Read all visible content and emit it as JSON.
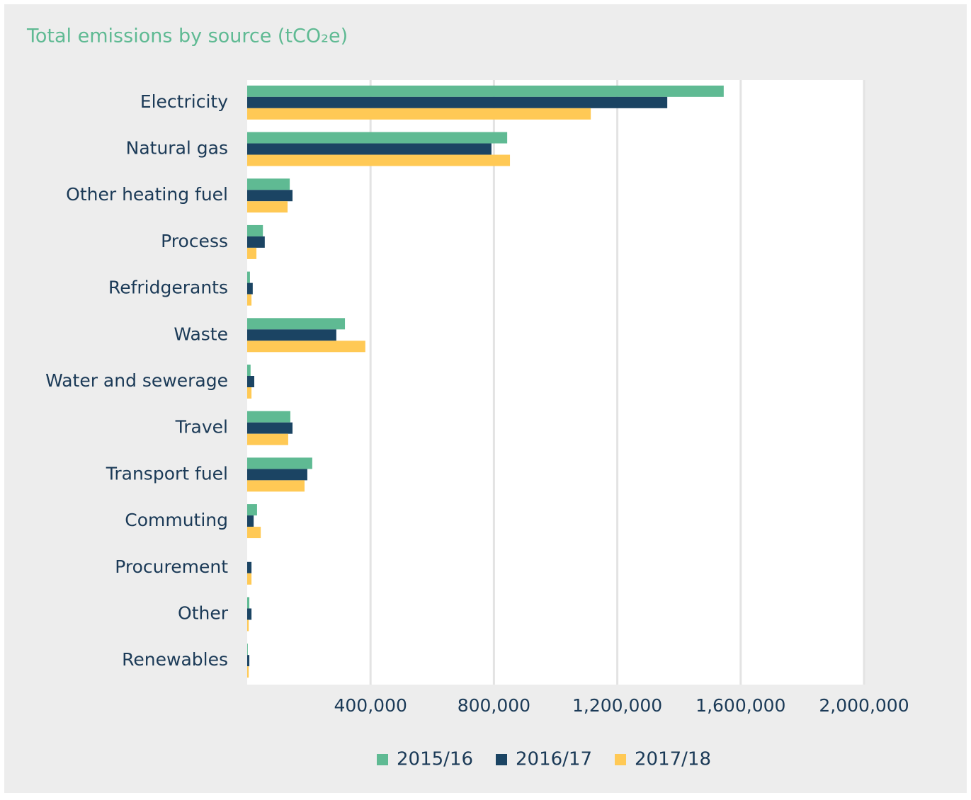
{
  "chart_data": {
    "type": "bar",
    "orientation": "horizontal",
    "title": "Total emissions by source (tCO₂e)",
    "categories": [
      "Electricity",
      "Natural gas",
      "Other heating fuel",
      "Process",
      "Refridgerants",
      "Waste",
      "Water and sewerage",
      "Travel",
      "Transport fuel",
      "Commuting",
      "Procurement",
      "Other",
      "Renewables"
    ],
    "series": [
      {
        "name": "2015/16",
        "color": "#5fba93",
        "values": [
          1545000,
          843000,
          138000,
          51000,
          9000,
          317000,
          11000,
          140000,
          211000,
          32000,
          0,
          7000,
          2000
        ]
      },
      {
        "name": "2016/17",
        "color": "#1b4463",
        "values": [
          1362000,
          792000,
          147000,
          57000,
          18000,
          289000,
          23000,
          147000,
          195000,
          21000,
          14000,
          14000,
          7000
        ]
      },
      {
        "name": "2017/18",
        "color": "#ffc955",
        "values": [
          1114000,
          852000,
          131000,
          30000,
          14000,
          383000,
          14000,
          133000,
          186000,
          44000,
          14000,
          5000,
          5000
        ]
      }
    ],
    "xlim": [
      0,
      2000000
    ],
    "xticks": [
      {
        "value": 400000,
        "label": "400,000"
      },
      {
        "value": 800000,
        "label": "800,000"
      },
      {
        "value": 1200000,
        "label": "1,200,000"
      },
      {
        "value": 1600000,
        "label": "1,600,000"
      },
      {
        "value": 2000000,
        "label": "2,000,000"
      }
    ],
    "grid": true,
    "legend": "bottom"
  }
}
